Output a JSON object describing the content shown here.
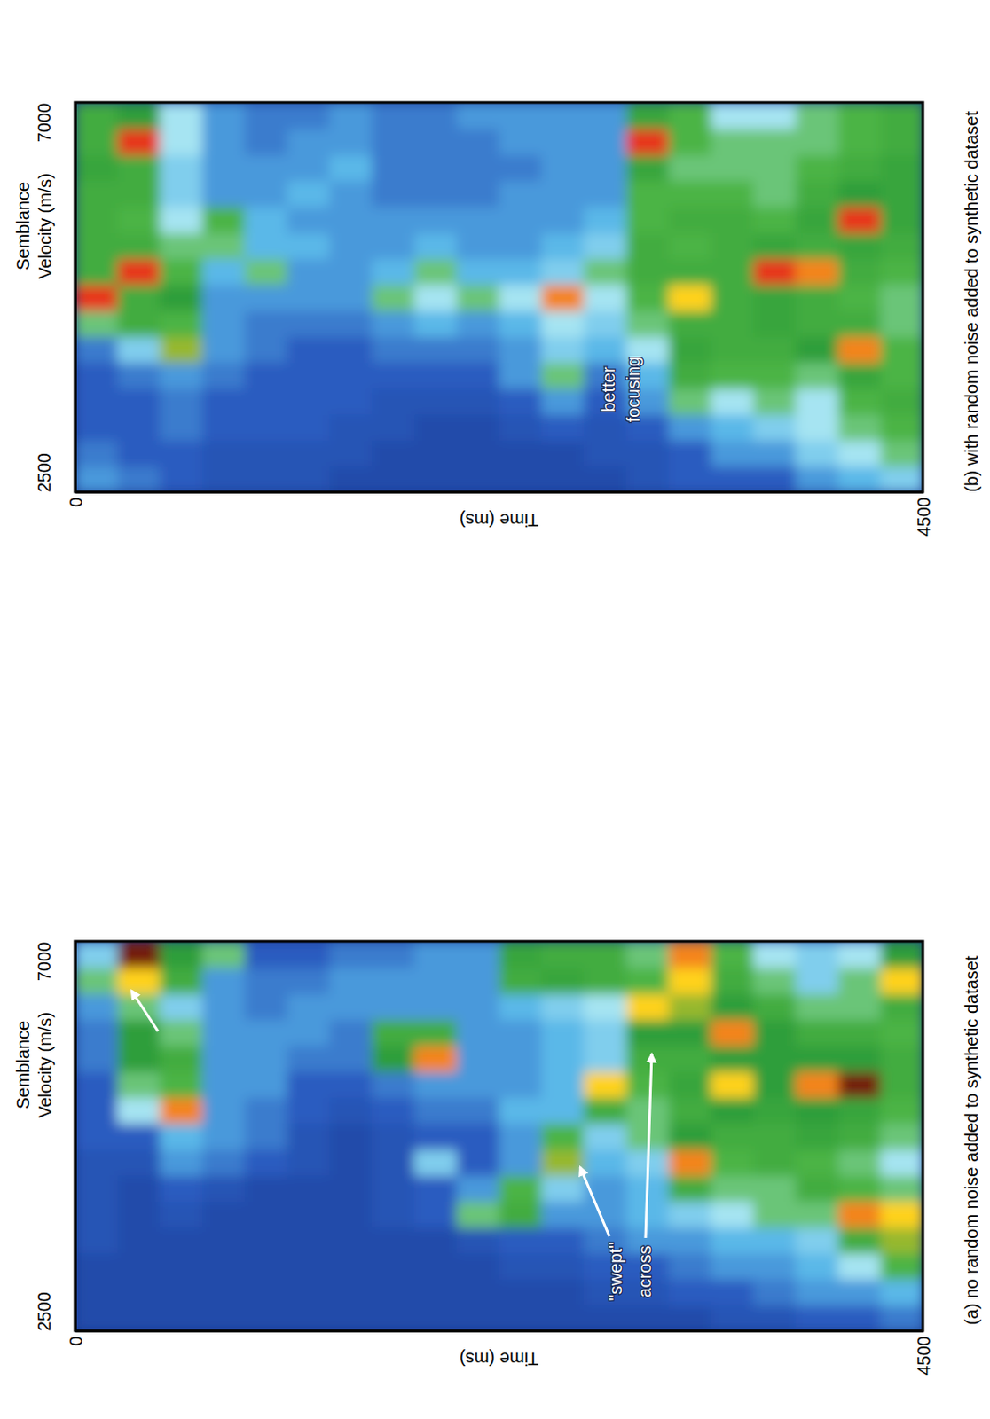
{
  "chart_data": [
    {
      "type": "heatmap",
      "title": "(a) no random noise added to synthetic dataset",
      "xlabel": "Time (ms)",
      "ylabel": "Semblance Velocity (m/s)",
      "xlim": [
        0,
        4500
      ],
      "xticks": [
        0,
        4500
      ],
      "ylim": [
        2500,
        7000
      ],
      "yticks": [
        2500,
        7000
      ],
      "zlim": [
        0,
        1
      ],
      "x_bins": [
        0,
        225,
        450,
        675,
        900,
        1125,
        1350,
        1575,
        1800,
        2025,
        2250,
        2475,
        2700,
        2925,
        3150,
        3375,
        3600,
        3825,
        4050,
        4275,
        4500
      ],
      "y_bins": [
        2500,
        2800,
        3100,
        3400,
        3700,
        4000,
        4300,
        4600,
        4900,
        5200,
        5500,
        5800,
        6100,
        6400,
        6700,
        7000
      ],
      "values": [
        [
          0.1,
          0.1,
          0.1,
          0.1,
          0.1,
          0.1,
          0.1,
          0.1,
          0.1,
          0.1,
          0.1,
          0.1,
          0.1,
          0.1,
          0.1,
          0.15,
          0.15,
          0.2,
          0.2,
          0.25
        ],
        [
          0.1,
          0.1,
          0.1,
          0.1,
          0.1,
          0.1,
          0.1,
          0.1,
          0.1,
          0.1,
          0.1,
          0.1,
          0.15,
          0.15,
          0.2,
          0.2,
          0.25,
          0.3,
          0.3,
          0.35
        ],
        [
          0.1,
          0.1,
          0.1,
          0.1,
          0.1,
          0.1,
          0.1,
          0.1,
          0.1,
          0.1,
          0.15,
          0.15,
          0.2,
          0.2,
          0.25,
          0.3,
          0.3,
          0.35,
          0.45,
          0.55
        ],
        [
          0.15,
          0.1,
          0.1,
          0.1,
          0.1,
          0.1,
          0.1,
          0.1,
          0.1,
          0.15,
          0.2,
          0.2,
          0.25,
          0.3,
          0.3,
          0.35,
          0.35,
          0.4,
          0.6,
          0.75
        ],
        [
          0.15,
          0.1,
          0.15,
          0.1,
          0.1,
          0.1,
          0.1,
          0.15,
          0.2,
          0.5,
          0.6,
          0.3,
          0.3,
          0.35,
          0.4,
          0.45,
          0.5,
          0.5,
          0.85,
          0.8
        ],
        [
          0.15,
          0.1,
          0.2,
          0.15,
          0.1,
          0.1,
          0.1,
          0.15,
          0.2,
          0.3,
          0.55,
          0.4,
          0.3,
          0.35,
          0.6,
          0.5,
          0.5,
          0.6,
          0.55,
          0.5
        ],
        [
          0.15,
          0.15,
          0.3,
          0.25,
          0.2,
          0.15,
          0.1,
          0.15,
          0.4,
          0.2,
          0.3,
          0.75,
          0.35,
          0.4,
          0.85,
          0.55,
          0.6,
          0.55,
          0.5,
          0.45
        ],
        [
          0.2,
          0.2,
          0.35,
          0.3,
          0.25,
          0.15,
          0.1,
          0.15,
          0.2,
          0.2,
          0.3,
          0.55,
          0.4,
          0.5,
          0.7,
          0.6,
          0.6,
          0.65,
          0.6,
          0.5
        ],
        [
          0.2,
          0.45,
          0.85,
          0.3,
          0.25,
          0.2,
          0.15,
          0.2,
          0.25,
          0.25,
          0.35,
          0.35,
          0.6,
          0.5,
          0.6,
          0.7,
          0.65,
          0.7,
          0.65,
          0.55
        ],
        [
          0.2,
          0.5,
          0.55,
          0.3,
          0.3,
          0.2,
          0.2,
          0.25,
          0.3,
          0.3,
          0.3,
          0.35,
          0.8,
          0.55,
          0.65,
          0.8,
          0.7,
          0.85,
          0.95,
          0.6
        ],
        [
          0.25,
          0.7,
          0.6,
          0.3,
          0.3,
          0.25,
          0.25,
          0.7,
          0.85,
          0.3,
          0.3,
          0.35,
          0.4,
          0.6,
          0.6,
          0.7,
          0.7,
          0.7,
          0.7,
          0.6
        ],
        [
          0.25,
          0.7,
          0.5,
          0.3,
          0.3,
          0.3,
          0.25,
          0.6,
          0.6,
          0.3,
          0.3,
          0.35,
          0.4,
          0.7,
          0.7,
          0.85,
          0.7,
          0.6,
          0.6,
          0.55
        ],
        [
          0.3,
          0.5,
          0.4,
          0.3,
          0.25,
          0.3,
          0.3,
          0.3,
          0.3,
          0.3,
          0.35,
          0.4,
          0.45,
          0.8,
          0.75,
          0.7,
          0.6,
          0.5,
          0.5,
          0.6
        ],
        [
          0.5,
          0.8,
          0.6,
          0.3,
          0.25,
          0.25,
          0.3,
          0.3,
          0.3,
          0.3,
          0.6,
          0.65,
          0.6,
          0.55,
          0.8,
          0.6,
          0.5,
          0.4,
          0.5,
          0.8
        ],
        [
          0.4,
          0.95,
          0.7,
          0.5,
          0.2,
          0.2,
          0.25,
          0.25,
          0.3,
          0.3,
          0.65,
          0.6,
          0.6,
          0.5,
          0.85,
          0.55,
          0.45,
          0.4,
          0.45,
          0.7
        ]
      ],
      "annotations": [
        {
          "lines": [
            "\"swept\"",
            "across"
          ]
        }
      ]
    },
    {
      "type": "heatmap",
      "title": "(b) with random noise added to synthetic dataset",
      "xlabel": "Time (ms)",
      "ylabel": "Semblance Velocity (m/s)",
      "xlim": [
        0,
        4500
      ],
      "xticks": [
        0,
        4500
      ],
      "ylim": [
        2500,
        7000
      ],
      "yticks": [
        2500,
        7000
      ],
      "zlim": [
        0,
        1
      ],
      "x_bins": [
        0,
        225,
        450,
        675,
        900,
        1125,
        1350,
        1575,
        1800,
        2025,
        2250,
        2475,
        2700,
        2925,
        3150,
        3375,
        3600,
        3825,
        4050,
        4275,
        4500
      ],
      "y_bins": [
        2500,
        2800,
        3100,
        3400,
        3700,
        4000,
        4300,
        4600,
        4900,
        5200,
        5500,
        5800,
        6100,
        6400,
        6700,
        7000
      ],
      "values": [
        [
          0.3,
          0.25,
          0.2,
          0.15,
          0.15,
          0.15,
          0.1,
          0.1,
          0.1,
          0.1,
          0.1,
          0.1,
          0.1,
          0.15,
          0.2,
          0.2,
          0.2,
          0.3,
          0.35,
          0.4
        ],
        [
          0.25,
          0.2,
          0.2,
          0.15,
          0.15,
          0.15,
          0.15,
          0.1,
          0.1,
          0.1,
          0.1,
          0.1,
          0.15,
          0.15,
          0.2,
          0.3,
          0.3,
          0.4,
          0.45,
          0.5
        ],
        [
          0.2,
          0.2,
          0.25,
          0.2,
          0.2,
          0.2,
          0.15,
          0.15,
          0.1,
          0.1,
          0.15,
          0.2,
          0.15,
          0.2,
          0.3,
          0.35,
          0.4,
          0.45,
          0.5,
          0.55
        ],
        [
          0.2,
          0.2,
          0.25,
          0.2,
          0.2,
          0.2,
          0.2,
          0.15,
          0.15,
          0.15,
          0.2,
          0.3,
          0.2,
          0.3,
          0.5,
          0.45,
          0.5,
          0.45,
          0.55,
          0.6
        ],
        [
          0.2,
          0.25,
          0.3,
          0.25,
          0.2,
          0.2,
          0.2,
          0.2,
          0.2,
          0.2,
          0.3,
          0.5,
          0.25,
          0.35,
          0.6,
          0.55,
          0.55,
          0.5,
          0.65,
          0.55
        ],
        [
          0.25,
          0.4,
          0.75,
          0.3,
          0.25,
          0.2,
          0.2,
          0.25,
          0.25,
          0.25,
          0.3,
          0.4,
          0.35,
          0.45,
          0.65,
          0.6,
          0.6,
          0.7,
          0.85,
          0.55
        ],
        [
          0.5,
          0.6,
          0.55,
          0.3,
          0.25,
          0.25,
          0.25,
          0.3,
          0.35,
          0.3,
          0.35,
          0.45,
          0.4,
          0.5,
          0.6,
          0.6,
          0.65,
          0.6,
          0.6,
          0.5
        ],
        [
          0.9,
          0.6,
          0.7,
          0.3,
          0.3,
          0.3,
          0.3,
          0.5,
          0.45,
          0.5,
          0.45,
          0.85,
          0.45,
          0.55,
          0.8,
          0.6,
          0.65,
          0.6,
          0.55,
          0.5
        ],
        [
          0.6,
          0.9,
          0.55,
          0.35,
          0.5,
          0.3,
          0.3,
          0.35,
          0.5,
          0.35,
          0.35,
          0.4,
          0.5,
          0.6,
          0.6,
          0.6,
          0.9,
          0.85,
          0.6,
          0.55
        ],
        [
          0.6,
          0.6,
          0.5,
          0.5,
          0.35,
          0.35,
          0.3,
          0.3,
          0.35,
          0.3,
          0.3,
          0.35,
          0.4,
          0.6,
          0.55,
          0.6,
          0.65,
          0.6,
          0.65,
          0.6
        ],
        [
          0.6,
          0.55,
          0.45,
          0.55,
          0.35,
          0.3,
          0.3,
          0.3,
          0.3,
          0.3,
          0.3,
          0.3,
          0.35,
          0.55,
          0.6,
          0.6,
          0.55,
          0.65,
          0.9,
          0.65
        ],
        [
          0.6,
          0.6,
          0.4,
          0.3,
          0.3,
          0.35,
          0.3,
          0.25,
          0.25,
          0.25,
          0.3,
          0.3,
          0.3,
          0.55,
          0.55,
          0.55,
          0.5,
          0.6,
          0.7,
          0.65
        ],
        [
          0.65,
          0.6,
          0.4,
          0.3,
          0.3,
          0.3,
          0.35,
          0.25,
          0.25,
          0.25,
          0.25,
          0.3,
          0.3,
          0.65,
          0.5,
          0.5,
          0.5,
          0.55,
          0.6,
          0.65
        ],
        [
          0.6,
          0.9,
          0.45,
          0.3,
          0.25,
          0.3,
          0.3,
          0.25,
          0.25,
          0.25,
          0.3,
          0.3,
          0.3,
          0.9,
          0.55,
          0.5,
          0.5,
          0.5,
          0.55,
          0.6
        ],
        [
          0.6,
          0.7,
          0.45,
          0.3,
          0.25,
          0.25,
          0.3,
          0.25,
          0.25,
          0.3,
          0.3,
          0.3,
          0.3,
          0.65,
          0.55,
          0.45,
          0.45,
          0.5,
          0.55,
          0.6
        ]
      ],
      "annotations": [
        {
          "lines": [
            "better",
            "focusing"
          ]
        }
      ]
    }
  ]
}
